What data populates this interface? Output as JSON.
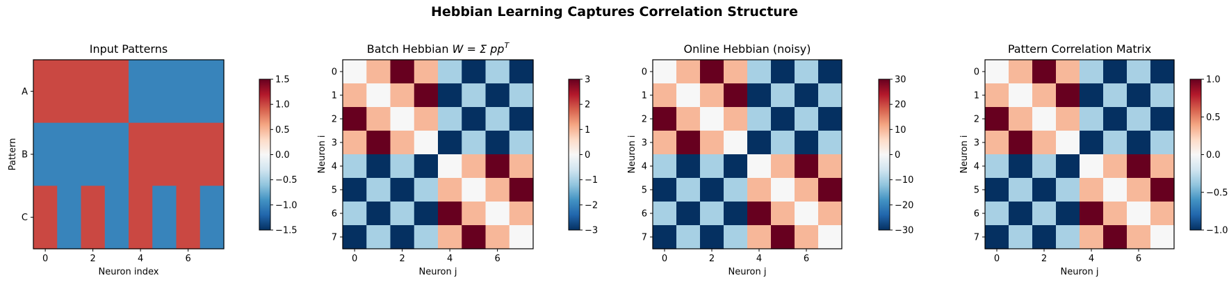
{
  "figure": {
    "suptitle": "Hebbian Learning Captures Correlation Structure",
    "colors": {
      "dark_red": "#67001f",
      "red": "#ca4741",
      "salmon": "#f5bda1",
      "white": "#f7f7f7",
      "light_blue": "#a9d0e5",
      "blue": "#3b83ba",
      "dark_blue": "#053061"
    }
  },
  "chart_data": [
    {
      "type": "heatmap",
      "title": "Input Patterns",
      "xlabel": "Neuron index",
      "ylabel": "Pattern",
      "x_ticks": [
        "0",
        "2",
        "4",
        "6"
      ],
      "y_ticks": [
        "A",
        "B",
        "C"
      ],
      "colormap": "RdBu_r",
      "clim": [
        -1.5,
        1.5
      ],
      "colorbar_ticks": [
        "1.5",
        "1.0",
        "0.5",
        "0.0",
        "−0.5",
        "−1.0",
        "−1.5"
      ],
      "values": [
        [
          1,
          1,
          1,
          1,
          -1,
          -1,
          -1,
          -1
        ],
        [
          -1,
          -1,
          -1,
          -1,
          1,
          1,
          1,
          1
        ],
        [
          1,
          -1,
          1,
          -1,
          1,
          -1,
          1,
          -1
        ]
      ]
    },
    {
      "type": "heatmap",
      "title": "Batch Hebbian W = Σ pp",
      "title_parts": {
        "prefix": "Batch Hebbian ",
        "formula": "W = Σ pp",
        "superscript": "T"
      },
      "xlabel": "Neuron j",
      "ylabel": "Neuron i",
      "x_ticks": [
        "0",
        "2",
        "4",
        "6"
      ],
      "y_ticks": [
        "0",
        "1",
        "2",
        "3",
        "4",
        "5",
        "6",
        "7"
      ],
      "colormap": "RdBu_r",
      "clim": [
        -3,
        3
      ],
      "colorbar_ticks": [
        "3",
        "2",
        "1",
        "0",
        "−1",
        "−2",
        "−3"
      ],
      "values": [
        [
          0,
          1,
          3,
          1,
          -1,
          -3,
          -1,
          -3
        ],
        [
          1,
          0,
          1,
          3,
          -3,
          -1,
          -3,
          -1
        ],
        [
          3,
          1,
          0,
          1,
          -1,
          -3,
          -1,
          -3
        ],
        [
          1,
          3,
          1,
          0,
          -3,
          -1,
          -3,
          -1
        ],
        [
          -1,
          -3,
          -1,
          -3,
          0,
          1,
          3,
          1
        ],
        [
          -3,
          -1,
          -3,
          -1,
          1,
          0,
          1,
          3
        ],
        [
          -1,
          -3,
          -1,
          -3,
          3,
          1,
          0,
          1
        ],
        [
          -3,
          -1,
          -3,
          -1,
          1,
          3,
          1,
          0
        ]
      ]
    },
    {
      "type": "heatmap",
      "title": "Online Hebbian (noisy)",
      "xlabel": "Neuron j",
      "ylabel": "Neuron i",
      "x_ticks": [
        "0",
        "2",
        "4",
        "6"
      ],
      "y_ticks": [
        "0",
        "1",
        "2",
        "3",
        "4",
        "5",
        "6",
        "7"
      ],
      "colormap": "RdBu_r",
      "clim": [
        -30,
        30
      ],
      "colorbar_ticks": [
        "30",
        "20",
        "10",
        "0",
        "−10",
        "−20",
        "−30"
      ],
      "values": [
        [
          0,
          10,
          30,
          10,
          -10,
          -30,
          -10,
          -30
        ],
        [
          10,
          0,
          10,
          30,
          -30,
          -10,
          -30,
          -10
        ],
        [
          30,
          10,
          0,
          10,
          -10,
          -30,
          -10,
          -30
        ],
        [
          10,
          30,
          10,
          0,
          -30,
          -10,
          -30,
          -10
        ],
        [
          -10,
          -30,
          -10,
          -30,
          0,
          10,
          30,
          10
        ],
        [
          -30,
          -10,
          -30,
          -10,
          10,
          0,
          10,
          30
        ],
        [
          -10,
          -30,
          -10,
          -30,
          30,
          10,
          0,
          10
        ],
        [
          -30,
          -10,
          -30,
          -10,
          10,
          30,
          10,
          0
        ]
      ]
    },
    {
      "type": "heatmap",
      "title": "Pattern Correlation Matrix",
      "xlabel": "Neuron j",
      "ylabel": "Neuron i",
      "x_ticks": [
        "0",
        "2",
        "4",
        "6"
      ],
      "y_ticks": [
        "0",
        "1",
        "2",
        "3",
        "4",
        "5",
        "6",
        "7"
      ],
      "colormap": "RdBu_r",
      "clim": [
        -1,
        1
      ],
      "colorbar_ticks": [
        "1.0",
        "0.5",
        "0.0",
        "−0.5",
        "−1.0"
      ],
      "values": [
        [
          0,
          0.33,
          1,
          0.33,
          -0.33,
          -1,
          -0.33,
          -1
        ],
        [
          0.33,
          0,
          0.33,
          1,
          -1,
          -0.33,
          -1,
          -0.33
        ],
        [
          1,
          0.33,
          0,
          0.33,
          -0.33,
          -1,
          -0.33,
          -1
        ],
        [
          0.33,
          1,
          0.33,
          0,
          -1,
          -0.33,
          -1,
          -0.33
        ],
        [
          -0.33,
          -1,
          -0.33,
          -1,
          0,
          0.33,
          1,
          0.33
        ],
        [
          -1,
          -0.33,
          -1,
          -0.33,
          0.33,
          0,
          0.33,
          1
        ],
        [
          -0.33,
          -1,
          -0.33,
          -1,
          1,
          0.33,
          0,
          0.33
        ],
        [
          -1,
          -0.33,
          -1,
          -0.33,
          0.33,
          1,
          0.33,
          0
        ]
      ]
    }
  ]
}
